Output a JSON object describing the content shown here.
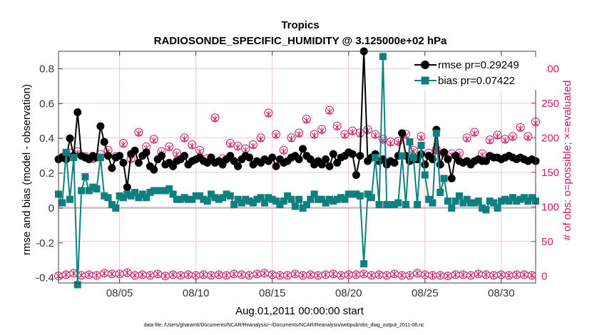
{
  "chart_data": {
    "type": "line",
    "title": "Tropics",
    "subtitle": "RADIOSONDE_SPECIFIC_HUMIDITY @ 3.125000e+02 hPa",
    "xlabel": "Aug.01,2011 00:00:00 start",
    "ylabel_left": "rmse and bias (model - observation)",
    "ylabel_right": "# of obs: o=possible; ×=evaluated",
    "footnote": "data file: /Users/gharamti/Documents/NCAR/Reanalysis/~/Documents/NCAR/Reanalysis/webpub/obs_diag_output_2011-08.nc",
    "x_unit": "days since Aug 01 2011",
    "xlim": [
      0.5,
      31.75
    ],
    "ylim_left": [
      -0.43,
      0.9
    ],
    "ylim_right": [
      -10,
      325
    ],
    "x_ticks": [
      4.5,
      9.5,
      14.5,
      19.5,
      24.5,
      29.5
    ],
    "x_tick_labels": [
      "08/05",
      "08/10",
      "08/15",
      "08/20",
      "08/25",
      "08/30"
    ],
    "y_ticks_left": [
      -0.4,
      -0.2,
      0,
      0.2,
      0.4,
      0.6,
      0.8
    ],
    "y_tick_labels_left": [
      "-0.4",
      "-0.2",
      "0",
      "0.2",
      "0.4",
      "0.6",
      "0.8"
    ],
    "y_ticks_right": [
      0,
      50,
      100,
      150,
      200,
      250,
      300
    ],
    "y_tick_labels_right": [
      "0",
      "50",
      "100",
      "150",
      "200",
      "250",
      "300"
    ],
    "grid": true,
    "legend_position": "top-right",
    "colors": {
      "rmse": "#000000",
      "bias": "#0f8080",
      "obs": "#cc1a66",
      "grid": "#f2c4d2",
      "zero_line": "#b0b0b0",
      "axis": "#404040"
    },
    "series": [
      {
        "name": "rmse",
        "legend": "rmse pr=0.29249",
        "marker": "circle",
        "x": [
          0.5,
          0.75,
          1.0,
          1.25,
          1.5,
          1.75,
          2.0,
          2.25,
          2.5,
          2.75,
          3.0,
          3.25,
          3.5,
          3.75,
          4.0,
          4.25,
          4.5,
          4.75,
          5.0,
          5.25,
          5.5,
          5.75,
          6.0,
          6.25,
          6.5,
          6.75,
          7.0,
          7.25,
          7.5,
          7.75,
          8.0,
          8.25,
          8.5,
          8.75,
          9.0,
          9.25,
          9.5,
          9.75,
          10.0,
          10.25,
          10.5,
          10.75,
          11.0,
          11.25,
          11.5,
          11.75,
          12.0,
          12.25,
          12.5,
          12.75,
          13.0,
          13.25,
          13.5,
          13.75,
          14.0,
          14.25,
          14.5,
          14.75,
          15.0,
          15.25,
          15.5,
          15.75,
          16.0,
          16.25,
          16.5,
          16.75,
          17.0,
          17.25,
          17.5,
          17.75,
          18.0,
          18.25,
          18.5,
          18.75,
          19.0,
          19.25,
          19.5,
          19.75,
          20.0,
          20.25,
          20.5,
          20.75,
          21.0,
          21.25,
          21.5,
          21.75,
          22.0,
          22.25,
          22.5,
          22.75,
          23.0,
          23.25,
          23.5,
          23.75,
          24.0,
          24.25,
          24.5,
          24.75,
          25.0,
          25.25,
          25.5,
          25.75,
          26.0,
          26.25,
          26.5,
          26.75,
          27.0,
          27.25,
          27.5,
          27.75,
          28.0,
          28.25,
          28.5,
          28.75,
          29.0,
          29.25,
          29.5,
          29.75,
          30.0,
          30.25,
          30.5,
          30.75,
          31.0,
          31.25,
          31.5,
          31.75
        ],
        "values": [
          0.28,
          0.29,
          0.28,
          0.4,
          0.3,
          0.55,
          0.3,
          0.29,
          0.28,
          0.3,
          0.29,
          0.47,
          0.38,
          0.3,
          0.23,
          0.29,
          0.3,
          0.26,
          0.12,
          0.31,
          0.33,
          0.26,
          0.3,
          0.32,
          0.24,
          0.22,
          0.28,
          0.3,
          0.25,
          0.26,
          0.24,
          0.27,
          0.28,
          0.3,
          0.25,
          0.27,
          0.28,
          0.29,
          0.27,
          0.26,
          0.29,
          0.26,
          0.27,
          0.25,
          0.28,
          0.3,
          0.27,
          0.24,
          0.28,
          0.3,
          0.29,
          0.25,
          0.27,
          0.26,
          0.28,
          0.27,
          0.29,
          0.24,
          0.28,
          0.26,
          0.27,
          0.29,
          0.3,
          0.28,
          0.34,
          0.3,
          0.28,
          0.25,
          0.27,
          0.25,
          0.28,
          0.24,
          0.31,
          0.26,
          0.29,
          0.3,
          0.32,
          0.31,
          0.19,
          0.3,
          0.9,
          0.27,
          0.29,
          0.31,
          0.27,
          0.28,
          0.25,
          0.27,
          0.26,
          0.3,
          0.43,
          0.3,
          0.27,
          0.28,
          0.28,
          0.31,
          0.25,
          0.3,
          0.28,
          0.45,
          0.25,
          0.32,
          0.28,
          0.17,
          0.3,
          0.27,
          0.26,
          0.27,
          0.25,
          0.27,
          0.28,
          0.27,
          0.27,
          0.3,
          0.29,
          0.29,
          0.28,
          0.29,
          0.3,
          0.29,
          0.28,
          0.29,
          0.28,
          0.27,
          0.28,
          0.27
        ]
      },
      {
        "name": "bias",
        "legend": "bias pr=0.07422",
        "marker": "square",
        "x": [
          0.5,
          0.75,
          1.0,
          1.25,
          1.5,
          1.75,
          2.0,
          2.25,
          2.5,
          2.75,
          3.0,
          3.25,
          3.5,
          3.75,
          4.0,
          4.25,
          4.5,
          4.75,
          5.0,
          5.25,
          5.5,
          5.75,
          6.0,
          6.25,
          6.5,
          6.75,
          7.0,
          7.25,
          7.5,
          7.75,
          8.0,
          8.25,
          8.5,
          8.75,
          9.0,
          9.25,
          9.5,
          9.75,
          10.0,
          10.25,
          10.5,
          10.75,
          11.0,
          11.25,
          11.5,
          11.75,
          12.0,
          12.25,
          12.5,
          12.75,
          13.0,
          13.25,
          13.5,
          13.75,
          14.0,
          14.25,
          14.5,
          14.75,
          15.0,
          15.25,
          15.5,
          15.75,
          16.0,
          16.25,
          16.5,
          16.75,
          17.0,
          17.25,
          17.5,
          17.75,
          18.0,
          18.25,
          18.5,
          18.75,
          19.0,
          19.25,
          19.5,
          19.75,
          20.0,
          20.25,
          20.5,
          20.75,
          21.0,
          21.25,
          21.5,
          21.75,
          22.0,
          22.25,
          22.5,
          22.75,
          23.0,
          23.25,
          23.5,
          23.75,
          24.0,
          24.25,
          24.5,
          24.75,
          25.0,
          25.25,
          25.5,
          25.75,
          26.0,
          26.25,
          26.5,
          26.75,
          27.0,
          27.25,
          27.5,
          27.75,
          28.0,
          28.25,
          28.5,
          28.75,
          29.0,
          29.25,
          29.5,
          29.75,
          30.0,
          30.25,
          30.5,
          30.75,
          31.0,
          31.25,
          31.5,
          31.75
        ],
        "values": [
          0.08,
          0.03,
          0.32,
          0.05,
          0.29,
          -0.44,
          0.1,
          0.18,
          0.1,
          0.12,
          0.11,
          0.29,
          0.07,
          0.06,
          0.02,
          0.0,
          0.07,
          0.06,
          0.08,
          0.07,
          0.09,
          0.06,
          0.08,
          0.06,
          0.09,
          0.1,
          0.1,
          0.1,
          0.1,
          0.11,
          0.08,
          0.05,
          0.05,
          0.06,
          0.05,
          0.05,
          0.07,
          0.07,
          0.05,
          0.04,
          0.08,
          0.06,
          0.05,
          0.06,
          0.08,
          0.07,
          0.02,
          0.05,
          0.03,
          0.05,
          0.04,
          0.03,
          0.05,
          0.06,
          0.03,
          0.06,
          0.05,
          0.04,
          0.02,
          0.04,
          0.07,
          0.05,
          0.01,
          0.05,
          0.0,
          0.02,
          0.05,
          0.08,
          0.05,
          0.05,
          0.03,
          0.05,
          0.04,
          0.05,
          0.06,
          0.05,
          0.08,
          0.08,
          0.08,
          0.07,
          -0.32,
          0.08,
          0.06,
          0.29,
          0.02,
          0.87,
          0.02,
          0.02,
          0.02,
          0.03,
          0.3,
          0.02,
          0.38,
          0.29,
          0.02,
          0.36,
          0.19,
          0.05,
          0.03,
          0.43,
          0.09,
          0.17,
          0.04,
          0.0,
          0.04,
          0.07,
          0.03,
          0.05,
          0.03,
          0.03,
          0.04,
          0.0,
          -0.01,
          0.04,
          0.03,
          0.0,
          0.04,
          0.05,
          0.04,
          0.06,
          0.04,
          0.05,
          0.06,
          0.04,
          0.06,
          0.04
        ]
      },
      {
        "name": "obs_possible",
        "marker": "open-circle",
        "axis": "right",
        "x": [
          0.5,
          0.75,
          1.0,
          1.25,
          1.5,
          1.75,
          2.0,
          2.25,
          2.5,
          2.75,
          3.0,
          3.25,
          3.5,
          3.75,
          4.0,
          4.25,
          4.5,
          4.75,
          5.0,
          5.25,
          5.5,
          5.75,
          6.0,
          6.25,
          6.5,
          6.75,
          7.0,
          7.25,
          7.5,
          7.75,
          8.0,
          8.25,
          8.5,
          8.75,
          9.0,
          9.25,
          9.5,
          9.75,
          10.0,
          10.25,
          10.5,
          10.75,
          11.0,
          11.25,
          11.5,
          11.75,
          12.0,
          12.25,
          12.5,
          12.75,
          13.0,
          13.25,
          13.5,
          13.75,
          14.0,
          14.25,
          14.5,
          14.75,
          15.0,
          15.25,
          15.5,
          15.75,
          16.0,
          16.25,
          16.5,
          16.75,
          17.0,
          17.25,
          17.5,
          17.75,
          18.0,
          18.25,
          18.5,
          18.75,
          19.0,
          19.25,
          19.5,
          19.75,
          20.0,
          20.25,
          20.5,
          20.75,
          21.0,
          21.25,
          21.5,
          21.75,
          22.0,
          22.25,
          22.5,
          22.75,
          23.0,
          23.25,
          23.5,
          23.75,
          24.0,
          24.25,
          24.5,
          24.75,
          25.0,
          25.25,
          25.5,
          25.75,
          26.0,
          26.25,
          26.5,
          26.75,
          27.0,
          27.25,
          27.5,
          27.75,
          28.0,
          28.25,
          28.5,
          28.75,
          29.0,
          29.25,
          29.5,
          29.75,
          30.0,
          30.25,
          30.5,
          30.75,
          31.0,
          31.25,
          31.5,
          31.75
        ],
        "values": [
          0,
          172,
          2,
          178,
          4,
          180,
          1,
          173,
          2,
          170,
          1,
          176,
          4,
          182,
          3,
          173,
          3,
          192,
          5,
          170,
          1,
          208,
          2,
          187,
          1,
          198,
          3,
          180,
          0,
          187,
          2,
          178,
          1,
          200,
          2,
          190,
          1,
          182,
          2,
          170,
          1,
          229,
          2,
          170,
          1,
          192,
          3,
          188,
          2,
          184,
          1,
          190,
          3,
          200,
          4,
          236,
          2,
          205,
          1,
          182,
          1,
          200,
          3,
          207,
          1,
          227,
          2,
          205,
          1,
          212,
          2,
          240,
          3,
          217,
          1,
          205,
          2,
          210,
          2,
          207,
          3,
          212,
          1,
          205,
          2,
          198,
          1,
          194,
          3,
          195,
          1,
          205,
          1,
          182,
          4,
          202,
          2,
          178,
          1,
          183,
          1,
          178,
          0,
          177,
          2,
          178,
          2,
          200,
          1,
          208,
          3,
          177,
          2,
          197,
          1,
          204,
          2,
          198,
          1,
          202,
          2,
          215,
          2,
          202,
          1,
          223
        ]
      },
      {
        "name": "obs_evaluated",
        "marker": "x",
        "axis": "right",
        "x": [
          0.5,
          0.75,
          1.0,
          1.25,
          1.5,
          1.75,
          2.0,
          2.25,
          2.5,
          2.75,
          3.0,
          3.25,
          3.5,
          3.75,
          4.0,
          4.25,
          4.5,
          4.75,
          5.0,
          5.25,
          5.5,
          5.75,
          6.0,
          6.25,
          6.5,
          6.75,
          7.0,
          7.25,
          7.5,
          7.75,
          8.0,
          8.25,
          8.5,
          8.75,
          9.0,
          9.25,
          9.5,
          9.75,
          10.0,
          10.25,
          10.5,
          10.75,
          11.0,
          11.25,
          11.5,
          11.75,
          12.0,
          12.25,
          12.5,
          12.75,
          13.0,
          13.25,
          13.5,
          13.75,
          14.0,
          14.25,
          14.5,
          14.75,
          15.0,
          15.25,
          15.5,
          15.75,
          16.0,
          16.25,
          16.5,
          16.75,
          17.0,
          17.25,
          17.5,
          17.75,
          18.0,
          18.25,
          18.5,
          18.75,
          19.0,
          19.25,
          19.5,
          19.75,
          20.0,
          20.25,
          20.5,
          20.75,
          21.0,
          21.25,
          21.5,
          21.75,
          22.0,
          22.25,
          22.5,
          22.75,
          23.0,
          23.25,
          23.5,
          23.75,
          24.0,
          24.25,
          24.5,
          24.75,
          25.0,
          25.25,
          25.5,
          25.75,
          26.0,
          26.25,
          26.5,
          26.75,
          27.0,
          27.25,
          27.5,
          27.75,
          28.0,
          28.25,
          28.5,
          28.75,
          29.0,
          29.25,
          29.5,
          29.75,
          30.0,
          30.25,
          30.5,
          30.75,
          31.0,
          31.25,
          31.5,
          31.75
        ],
        "values": [
          0,
          170,
          2,
          176,
          4,
          178,
          1,
          171,
          2,
          168,
          1,
          174,
          4,
          180,
          3,
          171,
          3,
          190,
          5,
          168,
          1,
          206,
          2,
          185,
          1,
          196,
          3,
          178,
          0,
          185,
          2,
          176,
          1,
          198,
          2,
          188,
          1,
          180,
          2,
          168,
          1,
          227,
          2,
          168,
          1,
          190,
          3,
          186,
          2,
          182,
          1,
          188,
          3,
          198,
          4,
          234,
          2,
          203,
          1,
          180,
          1,
          198,
          3,
          205,
          1,
          225,
          2,
          203,
          1,
          210,
          2,
          238,
          3,
          215,
          1,
          203,
          2,
          208,
          2,
          205,
          3,
          210,
          1,
          203,
          2,
          196,
          1,
          192,
          3,
          193,
          1,
          203,
          1,
          180,
          4,
          200,
          2,
          176,
          1,
          181,
          1,
          176,
          0,
          175,
          2,
          176,
          2,
          198,
          1,
          206,
          3,
          175,
          2,
          195,
          1,
          202,
          2,
          196,
          1,
          200,
          2,
          213,
          2,
          200,
          1,
          221
        ]
      }
    ]
  }
}
